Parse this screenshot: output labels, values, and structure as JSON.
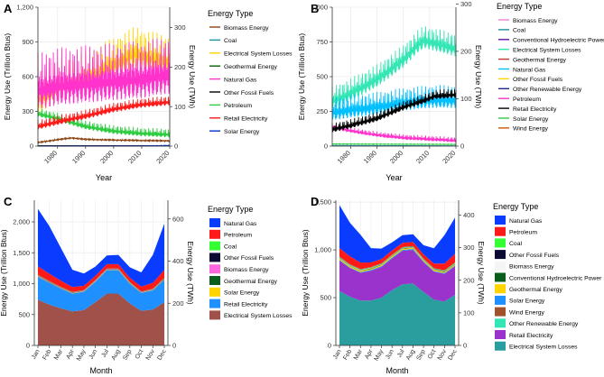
{
  "chart_data": [
    {
      "panel": "A",
      "type": "line",
      "title": "",
      "xlabel": "Year",
      "ylabel": "Energy Use (Trillion Btus)",
      "y2label": "Energy Use (TWh)",
      "xlim": [
        1973,
        2020
      ],
      "ylim": [
        0,
        1200
      ],
      "xticks": [
        "1980",
        "1990",
        "2000",
        "2010",
        "2020"
      ],
      "yticks": [
        "0",
        "300",
        "600",
        "900",
        "1,200"
      ],
      "y2ticks": [
        "0",
        "100",
        "200",
        "300"
      ],
      "legend_title": "Energy Type",
      "legend_position": "right",
      "series": [
        {
          "name": "Biomass Energy",
          "color": "#8b4513",
          "values": [
            [
              1973,
              30
            ],
            [
              1980,
              55
            ],
            [
              1985,
              70
            ],
            [
              1990,
              58
            ],
            [
              2000,
              52
            ],
            [
              2010,
              48
            ],
            [
              2020,
              45
            ]
          ],
          "amplitude": 10
        },
        {
          "name": "Coal",
          "color": "#1e8fa0",
          "values": [
            [
              1973,
              5
            ],
            [
              1990,
              4
            ],
            [
              2020,
              2
            ]
          ],
          "amplitude": 1
        },
        {
          "name": "Electrical System Losses",
          "color": "#ffd400",
          "values": [
            [
              1973,
              400
            ],
            [
              1980,
              500
            ],
            [
              1990,
              580
            ],
            [
              2000,
              700
            ],
            [
              2008,
              800
            ],
            [
              2012,
              760
            ],
            [
              2020,
              720
            ]
          ],
          "amplitude": 240
        },
        {
          "name": "Geothermal Energy",
          "color": "#006400",
          "values": [
            [
              1973,
              1
            ],
            [
              2020,
              3
            ]
          ],
          "amplitude": 1
        },
        {
          "name": "Natural Gas",
          "color": "#ff33cc",
          "values": [
            [
              1973,
              480
            ],
            [
              1980,
              520
            ],
            [
              1990,
              540
            ],
            [
              2000,
              560
            ],
            [
              2010,
              580
            ],
            [
              2020,
              620
            ]
          ],
          "amplitude": 330
        },
        {
          "name": "Other Fossil Fuels",
          "color": "#000000",
          "values": [
            [
              1973,
              3
            ],
            [
              2020,
              3
            ]
          ],
          "amplitude": 1
        },
        {
          "name": "Petroleum",
          "color": "#2ecc40",
          "values": [
            [
              1973,
              280
            ],
            [
              1980,
              240
            ],
            [
              1990,
              170
            ],
            [
              2000,
              130
            ],
            [
              2010,
              110
            ],
            [
              2020,
              100
            ]
          ],
          "amplitude": 50
        },
        {
          "name": "Retail Electricity",
          "color": "#ff1a1a",
          "values": [
            [
              1973,
              170
            ],
            [
              1980,
              210
            ],
            [
              1990,
              260
            ],
            [
              2000,
              320
            ],
            [
              2010,
              360
            ],
            [
              2020,
              380
            ]
          ],
          "amplitude": 55
        },
        {
          "name": "Solar Energy",
          "color": "#0033cc",
          "values": [
            [
              1973,
              0
            ],
            [
              2010,
              2
            ],
            [
              2020,
              6
            ]
          ],
          "amplitude": 2
        }
      ]
    },
    {
      "panel": "B",
      "type": "line",
      "title": "",
      "xlabel": "Year",
      "ylabel": "Energy Use (Trillion Btus)",
      "y2label": "Energy Use (TWh)",
      "xlim": [
        1973,
        2020
      ],
      "ylim": [
        0,
        1000
      ],
      "xticks": [
        "1980",
        "1990",
        "2000",
        "2010",
        "2020"
      ],
      "yticks": [
        "0",
        "250",
        "500",
        "750",
        "1,000"
      ],
      "y2ticks": [
        "0",
        "100",
        "200",
        "300"
      ],
      "legend_title": "Energy Type",
      "legend_position": "right",
      "series": [
        {
          "name": "Biomass Energy",
          "color": "#f080e0",
          "values": [
            [
              1973,
              0
            ],
            [
              2020,
              0
            ]
          ],
          "amplitude": 0
        },
        {
          "name": "Coal",
          "color": "#1e8fa0",
          "values": [
            [
              1973,
              5
            ],
            [
              2020,
              2
            ]
          ],
          "amplitude": 1
        },
        {
          "name": "Conventional Hydroelectric Power",
          "color": "#6a0dad",
          "values": [
            [
              1973,
              0
            ],
            [
              2020,
              0
            ]
          ],
          "amplitude": 0
        },
        {
          "name": "Electrical System Losses",
          "color": "#33e6b4",
          "values": [
            [
              1973,
              320
            ],
            [
              1980,
              380
            ],
            [
              1990,
              480
            ],
            [
              2000,
              620
            ],
            [
              2005,
              720
            ],
            [
              2008,
              760
            ],
            [
              2012,
              740
            ],
            [
              2020,
              700
            ]
          ],
          "amplitude": 110
        },
        {
          "name": "Geothermal Energy",
          "color": "#c0392b",
          "values": [
            [
              1973,
              0
            ],
            [
              2020,
              0
            ]
          ],
          "amplitude": 0
        },
        {
          "name": "Natural Gas",
          "color": "#00bfff",
          "values": [
            [
              1973,
              240
            ],
            [
              1980,
              260
            ],
            [
              1990,
              280
            ],
            [
              2000,
              310
            ],
            [
              2010,
              330
            ],
            [
              2020,
              330
            ]
          ],
          "amplitude": 110
        },
        {
          "name": "Other Fossil Fuels",
          "color": "#ffd400",
          "values": [
            [
              1973,
              0
            ],
            [
              2020,
              0
            ]
          ],
          "amplitude": 0
        },
        {
          "name": "Other Renewable Energy",
          "color": "#1a2a8a",
          "values": [
            [
              1973,
              0
            ],
            [
              2020,
              0
            ]
          ],
          "amplitude": 0
        },
        {
          "name": "Petroleum",
          "color": "#ff33cc",
          "values": [
            [
              1973,
              140
            ],
            [
              1980,
              110
            ],
            [
              1990,
              80
            ],
            [
              2000,
              60
            ],
            [
              2010,
              50
            ],
            [
              2020,
              40
            ]
          ],
          "amplitude": 25
        },
        {
          "name": "Retail Electricity",
          "color": "#000000",
          "values": [
            [
              1973,
              120
            ],
            [
              1980,
              150
            ],
            [
              1990,
              200
            ],
            [
              2000,
              280
            ],
            [
              2008,
              330
            ],
            [
              2012,
              360
            ],
            [
              2020,
              370
            ]
          ],
          "amplitude": 45
        },
        {
          "name": "Solar Energy",
          "color": "#2ecc40",
          "values": [
            [
              1973,
              15
            ],
            [
              2020,
              12
            ]
          ],
          "amplitude": 3
        },
        {
          "name": "Wind Energy",
          "color": "#d35400",
          "values": [
            [
              1973,
              0
            ],
            [
              2020,
              0
            ]
          ],
          "amplitude": 0
        }
      ]
    },
    {
      "panel": "C",
      "type": "area",
      "title": "",
      "xlabel": "Month",
      "ylabel": "Energy Use (Trillion Btus)",
      "y2label": "Energy Use (TWh)",
      "ylim": [
        0,
        2350
      ],
      "categories": [
        "Jan",
        "Feb",
        "Mar",
        "Apr",
        "May",
        "Jun",
        "Jul",
        "Aug",
        "Sep",
        "Oct",
        "Nov",
        "Dec"
      ],
      "yticks": [
        "0",
        "500",
        "1,000",
        "1,500",
        "2,000"
      ],
      "y2ticks": [
        "0",
        "200",
        "400",
        "600"
      ],
      "legend_title": "Energy Type",
      "legend_position": "right",
      "series": [
        {
          "name": "Natural Gas",
          "color": "#0a3cff",
          "values": [
            930,
            770,
            530,
            280,
            200,
            150,
            140,
            150,
            170,
            230,
            450,
            750
          ]
        },
        {
          "name": "Petroleum",
          "color": "#ff1a1a",
          "values": [
            140,
            120,
            100,
            80,
            70,
            70,
            70,
            70,
            70,
            80,
            100,
            130
          ]
        },
        {
          "name": "Coal",
          "color": "#33ff33",
          "values": [
            8,
            8,
            6,
            5,
            5,
            5,
            5,
            5,
            5,
            5,
            6,
            8
          ]
        },
        {
          "name": "Other Fossil Fuels",
          "color": "#0a0a33",
          "values": [
            5,
            5,
            4,
            4,
            4,
            4,
            4,
            4,
            4,
            4,
            4,
            5
          ]
        },
        {
          "name": "Biomass Energy",
          "color": "#ff66dd",
          "values": [
            10,
            10,
            8,
            6,
            6,
            6,
            6,
            6,
            6,
            6,
            8,
            10
          ]
        },
        {
          "name": "Geothermal Energy",
          "color": "#0b5d1e",
          "values": [
            4,
            4,
            4,
            4,
            4,
            4,
            4,
            4,
            4,
            4,
            4,
            4
          ]
        },
        {
          "name": "Solar Energy",
          "color": "#ffd400",
          "values": [
            3,
            3,
            4,
            5,
            6,
            6,
            6,
            6,
            5,
            4,
            3,
            3
          ]
        },
        {
          "name": "Retail Electricity",
          "color": "#1e90ff",
          "values": [
            370,
            350,
            320,
            290,
            300,
            330,
            380,
            380,
            320,
            290,
            310,
            360
          ]
        },
        {
          "name": "Electrical System Losses",
          "color": "#a0524a",
          "values": [
            740,
            660,
            600,
            550,
            570,
            700,
            840,
            840,
            680,
            560,
            580,
            700
          ]
        }
      ]
    },
    {
      "panel": "D",
      "type": "area",
      "title": "",
      "xlabel": "Month",
      "ylabel": "Energy Use (Trillion Btus)",
      "y2label": "Energy Use (TWh)",
      "ylim": [
        0,
        1520
      ],
      "categories": [
        "Jan",
        "Feb",
        "Mar",
        "Apr",
        "May",
        "Jun",
        "Jul",
        "Aug",
        "Sep",
        "Oct",
        "Nov",
        "Dec"
      ],
      "yticks": [
        "0",
        "500",
        "1,000",
        "1,500"
      ],
      "y2ticks": [
        "0",
        "100",
        "200",
        "300",
        "400"
      ],
      "legend_title": "Energy Type",
      "legend_position": "right",
      "series": [
        {
          "name": "Natural Gas",
          "color": "#0a3cff",
          "values": [
            450,
            350,
            290,
            150,
            110,
            85,
            80,
            80,
            95,
            160,
            300,
            380
          ]
        },
        {
          "name": "Petroleum",
          "color": "#ff1a1a",
          "values": [
            90,
            85,
            70,
            50,
            45,
            45,
            45,
            45,
            45,
            50,
            70,
            90
          ]
        },
        {
          "name": "Coal",
          "color": "#33ff33",
          "values": [
            6,
            6,
            5,
            4,
            4,
            4,
            4,
            4,
            4,
            4,
            5,
            6
          ]
        },
        {
          "name": "Other Fossil Fuels",
          "color": "#0a0a33",
          "values": [
            4,
            4,
            3,
            3,
            3,
            3,
            3,
            3,
            3,
            3,
            3,
            4
          ]
        },
        {
          "name": "Biomass Energy",
          "color": "#f5f5f5",
          "values": [
            6,
            6,
            5,
            5,
            5,
            5,
            5,
            5,
            5,
            5,
            5,
            6
          ]
        },
        {
          "name": "Conventional Hydroelectric Power",
          "color": "#0b5d1e",
          "values": [
            5,
            5,
            5,
            5,
            5,
            5,
            5,
            5,
            5,
            5,
            5,
            5
          ]
        },
        {
          "name": "Geothermal Energy",
          "color": "#ffd400",
          "values": [
            12,
            12,
            12,
            12,
            12,
            12,
            12,
            12,
            12,
            12,
            12,
            12
          ]
        },
        {
          "name": "Solar Energy",
          "color": "#1e90ff",
          "values": [
            6,
            6,
            8,
            10,
            10,
            10,
            10,
            10,
            10,
            8,
            6,
            6
          ]
        },
        {
          "name": "Wind Energy",
          "color": "#a0522d",
          "values": [
            0,
            0,
            0,
            0,
            0,
            0,
            0,
            0,
            0,
            0,
            0,
            0
          ]
        },
        {
          "name": "Other Renewable Energy",
          "color": "#33e6b4",
          "values": [
            0,
            0,
            0,
            0,
            0,
            0,
            0,
            0,
            0,
            0,
            0,
            0
          ]
        },
        {
          "name": "Retail Electricity",
          "color": "#9933cc",
          "values": [
            320,
            300,
            290,
            310,
            320,
            330,
            350,
            350,
            310,
            290,
            290,
            300
          ]
        },
        {
          "name": "Electrical System Losses",
          "color": "#2a9d9f",
          "values": [
            570,
            510,
            470,
            470,
            500,
            580,
            640,
            650,
            560,
            480,
            460,
            530
          ]
        }
      ]
    }
  ],
  "panels": {
    "A": {
      "tag": "A",
      "legend_title": "Energy Type",
      "legend": [
        "Biomass Energy",
        "Coal",
        "Electrical System Losses",
        "Geothermal Energy",
        "Natural Gas",
        "Other Fossil Fuels",
        "Petroleum",
        "Retail Electricity",
        "Solar Energy"
      ]
    },
    "B": {
      "tag": "B",
      "legend_title": "Energy Type",
      "legend": [
        "Biomass Energy",
        "Coal",
        "Conventional Hydroelectric Power",
        "Electrical System Losses",
        "Geothermal Energy",
        "Natural Gas",
        "Other Fossil Fuels",
        "Other Renewable Energy",
        "Petroleum",
        "Retail Electricity",
        "Solar Energy",
        "Wind Energy"
      ]
    },
    "C": {
      "tag": "C",
      "legend_title": "Energy Type",
      "legend": [
        "Natural Gas",
        "Petroleum",
        "Coal",
        "Other Fossil Fuels",
        "Biomass Energy",
        "Geothermal Energy",
        "Solar Energy",
        "Retail Electricity",
        "Electrical System Losses"
      ]
    },
    "D": {
      "tag": "D",
      "legend_title": "Energy Type",
      "legend": [
        "Natural Gas",
        "Petroleum",
        "Coal",
        "Other Fossil Fuels",
        "Biomass Energy",
        "Conventional Hydroelectric Power",
        "Geothermal Energy",
        "Solar Energy",
        "Wind Energy",
        "Other Renewable Energy",
        "Retail Electricity",
        "Electrical System Losses"
      ]
    }
  }
}
